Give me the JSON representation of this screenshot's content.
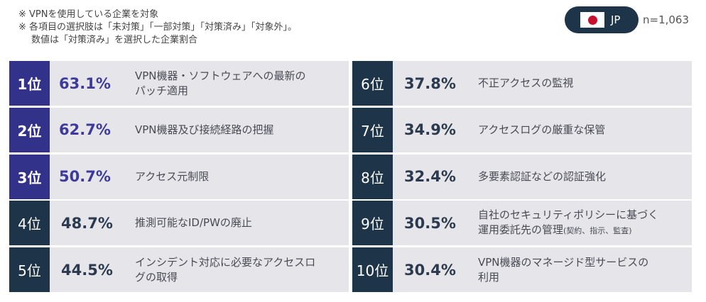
{
  "notes": [
    "※ VPNを使用している企業を対象",
    "※ 各項目の選択肢は「未対策」「一部対策」「対策済み」「対象外」。",
    "数値は「対策済み」を選択した企業割合"
  ],
  "region": {
    "code": "JP",
    "flag": "japan-flag"
  },
  "sample_size": "n=1,063",
  "colors": {
    "top_rank": "#33328a",
    "rank": "#1e3448",
    "row_bg": "#e6e6ea",
    "top_pct": "#3e3a9c"
  },
  "chart_data": {
    "type": "table",
    "items": [
      {
        "rank": "1位",
        "value": 63.1,
        "value_label": "63.1%",
        "label_lines": [
          "VPN機器・ソフトウェアへの最新の",
          "パッチ適用"
        ],
        "label_small": ""
      },
      {
        "rank": "2位",
        "value": 62.7,
        "value_label": "62.7%",
        "label_lines": [
          "VPN機器及び接続経路の把握"
        ],
        "label_small": ""
      },
      {
        "rank": "3位",
        "value": 50.7,
        "value_label": "50.7%",
        "label_lines": [
          "アクセス元制限"
        ],
        "label_small": ""
      },
      {
        "rank": "4位",
        "value": 48.7,
        "value_label": "48.7%",
        "label_lines": [
          "推測可能なID/PWの廃止"
        ],
        "label_small": ""
      },
      {
        "rank": "5位",
        "value": 44.5,
        "value_label": "44.5%",
        "label_lines": [
          "インシデント対応に必要なアクセスロ",
          "グの取得"
        ],
        "label_small": ""
      },
      {
        "rank": "6位",
        "value": 37.8,
        "value_label": "37.8%",
        "label_lines": [
          "不正アクセスの監視"
        ],
        "label_small": ""
      },
      {
        "rank": "7位",
        "value": 34.9,
        "value_label": "34.9%",
        "label_lines": [
          "アクセスログの厳重な保管"
        ],
        "label_small": ""
      },
      {
        "rank": "8位",
        "value": 32.4,
        "value_label": "32.4%",
        "label_lines": [
          "多要素認証などの認証強化"
        ],
        "label_small": ""
      },
      {
        "rank": "9位",
        "value": 30.5,
        "value_label": "30.5%",
        "label_lines": [
          "自社のセキュリティポリシーに基づく",
          "運用委託先の管理"
        ],
        "label_small": "(契約、指示、監査)"
      },
      {
        "rank": "10位",
        "value": 30.4,
        "value_label": "30.4%",
        "label_lines": [
          "VPN機器のマネージド型サービスの",
          "利用"
        ],
        "label_small": ""
      }
    ]
  }
}
